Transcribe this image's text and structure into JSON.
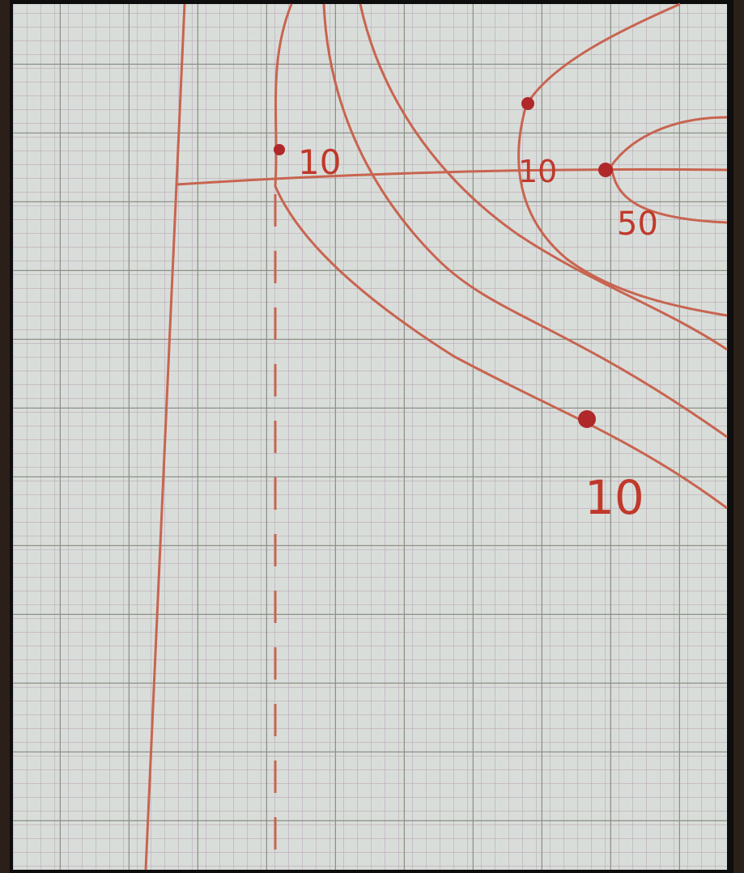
{
  "annotations": [
    "10",
    "10",
    "50",
    "10"
  ]
}
